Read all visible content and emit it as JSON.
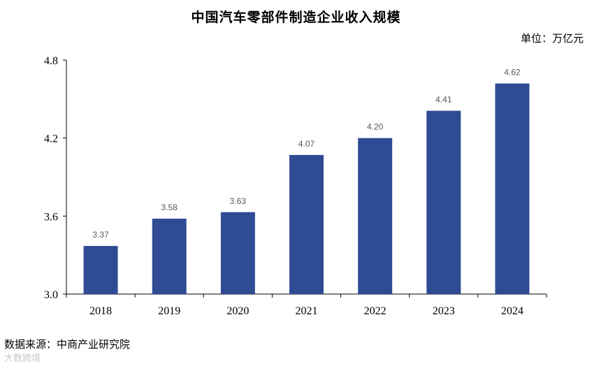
{
  "title": "中国汽车零部件制造企业收入规模",
  "unit": "单位：万亿元",
  "source": "数据来源：中商产业研究院",
  "watermark": "大数跨境",
  "chart_data": {
    "type": "bar",
    "title": "中国汽车零部件制造企业收入规模",
    "categories": [
      "2018",
      "2019",
      "2020",
      "2021",
      "2022",
      "2023",
      "2024"
    ],
    "values": [
      3.37,
      3.58,
      3.63,
      4.07,
      4.2,
      4.41,
      4.62
    ],
    "value_labels": [
      "3.37",
      "3.58",
      "3.63",
      "4.07",
      "4.20",
      "4.41",
      "4.62"
    ],
    "ylim": [
      3.0,
      4.8
    ],
    "yticks": [
      3.0,
      3.6,
      4.2,
      4.8
    ],
    "ytick_labels": [
      "3.0",
      "3.6",
      "4.2",
      "4.8"
    ],
    "bar_color": "#2F4B94",
    "grid": false,
    "legend": "none"
  }
}
